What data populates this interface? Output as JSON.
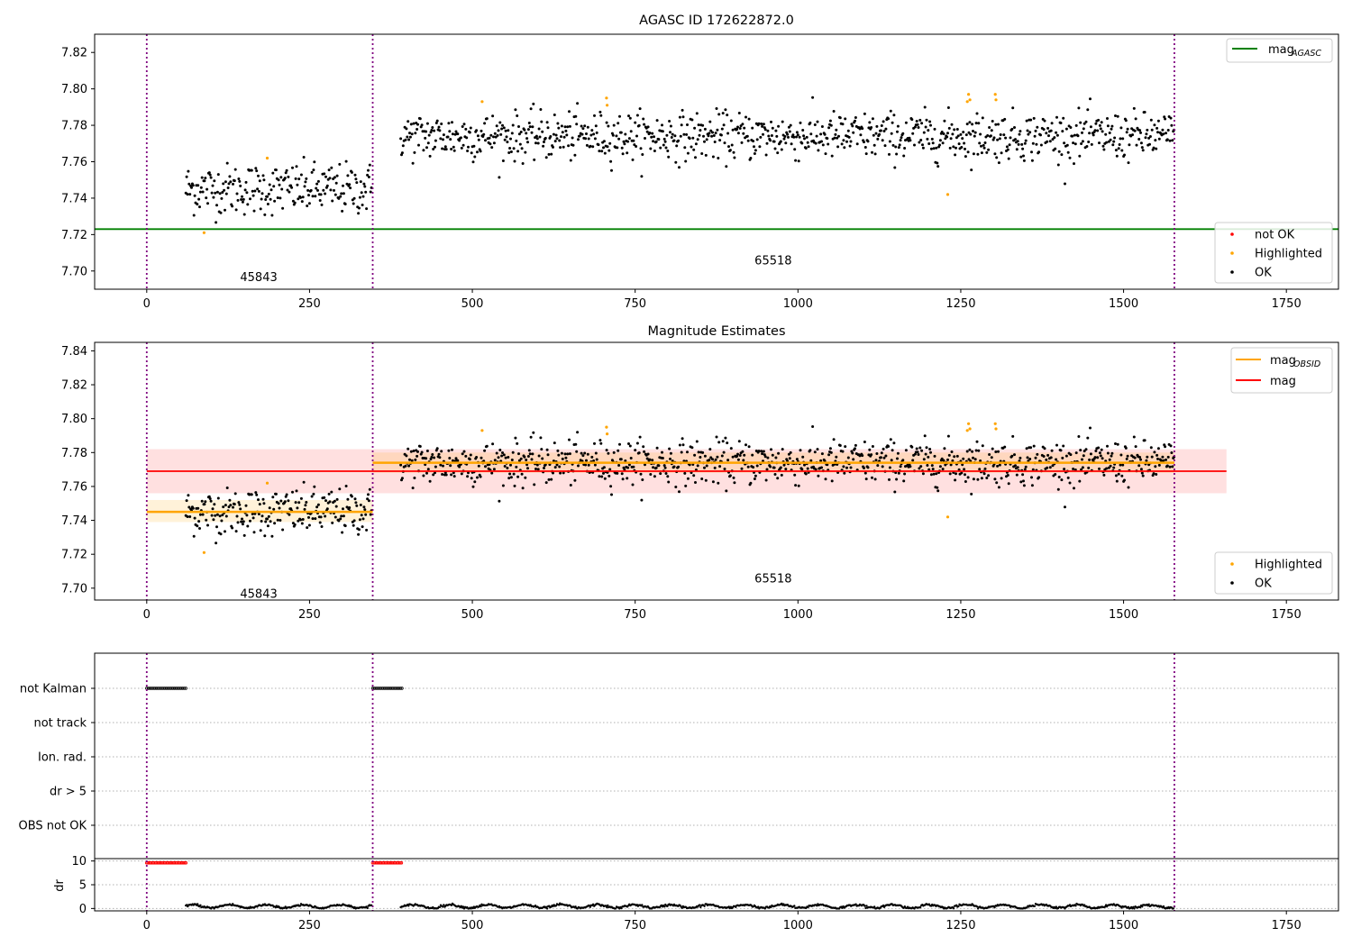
{
  "chart_data": [
    {
      "type": "scatter",
      "title": "AGASC ID 172622872.0",
      "xlim": [
        -80,
        1830
      ],
      "ylim": [
        7.69,
        7.83
      ],
      "xticks": [
        "0",
        "250",
        "500",
        "750",
        "1000",
        "1250",
        "1500",
        "1750"
      ],
      "yticks": [
        "7.70",
        "7.72",
        "7.74",
        "7.76",
        "7.78",
        "7.80",
        "7.82"
      ],
      "obs_boundaries": [
        0,
        347,
        1578
      ],
      "obs_labels": [
        {
          "text": "45843",
          "x": 172,
          "y": 7.697
        },
        {
          "text": "65518",
          "x": 962,
          "y": 7.706
        }
      ],
      "mag_agasc": 7.723,
      "legend_top": {
        "position": "top-right",
        "entries": [
          {
            "label": "mag",
            "sub": "AGASC",
            "color": "#008000"
          }
        ]
      },
      "legend_bottom": {
        "position": "bottom-right",
        "entries": [
          {
            "label": "not OK",
            "color": "#ff0000"
          },
          {
            "label": "Highlighted",
            "color": "#ffa500"
          },
          {
            "label": "OK",
            "color": "#000000"
          }
        ]
      },
      "series": [
        {
          "name": "OK",
          "color": "#000000",
          "segments": [
            {
              "x_start": 60,
              "x_end": 346,
              "mean": 7.745,
              "spread": 0.007
            },
            {
              "x_start": 390,
              "x_end": 1578,
              "mean": 7.774,
              "spread": 0.0065
            }
          ]
        },
        {
          "name": "Highlighted",
          "color": "#ffa500",
          "points": [
            [
              88,
              7.721
            ],
            [
              185,
              7.762
            ],
            [
              515,
              7.793
            ],
            [
              706,
              7.795
            ],
            [
              707,
              7.791
            ],
            [
              1230,
              7.742
            ],
            [
              1260,
              7.793
            ],
            [
              1262,
              7.797
            ],
            [
              1264,
              7.794
            ],
            [
              1303,
              7.797
            ],
            [
              1304,
              7.794
            ]
          ]
        },
        {
          "name": "not OK",
          "color": "#ff0000",
          "points": []
        }
      ]
    },
    {
      "type": "scatter",
      "title": "Magnitude Estimates",
      "xlim": [
        -80,
        1830
      ],
      "ylim": [
        7.693,
        7.845
      ],
      "xticks": [
        "0",
        "250",
        "500",
        "750",
        "1000",
        "1250",
        "1500",
        "1750"
      ],
      "yticks": [
        "7.70",
        "7.72",
        "7.74",
        "7.76",
        "7.78",
        "7.80",
        "7.82",
        "7.84"
      ],
      "obs_boundaries": [
        0,
        347,
        1578
      ],
      "obs_labels": [
        {
          "text": "45843",
          "x": 172,
          "y": 7.697
        },
        {
          "text": "65518",
          "x": 962,
          "y": 7.706
        }
      ],
      "mag": {
        "value": 7.769,
        "band": [
          7.756,
          7.782
        ],
        "x_start": 0,
        "x_end": 1658,
        "color": "#ff0000"
      },
      "mag_obsid": [
        {
          "value": 7.745,
          "band": [
            7.739,
            7.752
          ],
          "x_start": 0,
          "x_end": 347
        },
        {
          "value": 7.774,
          "band": [
            7.768,
            7.78
          ],
          "x_start": 347,
          "x_end": 1578
        }
      ],
      "legend_top": {
        "position": "top-right",
        "entries": [
          {
            "label": "mag",
            "sub": "OBSID",
            "color": "#ffa500"
          },
          {
            "label": "mag",
            "sub": "",
            "color": "#ff0000"
          }
        ]
      },
      "legend_bottom": {
        "position": "bottom-right",
        "entries": [
          {
            "label": "Highlighted",
            "color": "#ffa500"
          },
          {
            "label": "OK",
            "color": "#000000"
          }
        ]
      }
    },
    {
      "type": "scatter",
      "title": "",
      "xlim": [
        -80,
        1830
      ],
      "flag_categories": [
        "not Kalman",
        "not track",
        "Ion. rad.",
        "dr > 5",
        "OBS not OK"
      ],
      "flags": {
        "not Kalman": [
          [
            0,
            60
          ],
          [
            347,
            392
          ]
        ]
      },
      "dr_ylim": [
        -0.5,
        10.5
      ],
      "dr_yticks": [
        "0",
        "5",
        "10"
      ],
      "dr_ylabel": "dr",
      "dr_high_segments": [
        [
          0,
          60
        ],
        [
          347,
          392
        ]
      ],
      "dr_high_value": 9.6,
      "dr_low_segments": [
        [
          60,
          346
        ],
        [
          390,
          1578
        ]
      ],
      "dr_low_mean": 0.45,
      "xticks": [
        "0",
        "250",
        "500",
        "750",
        "1000",
        "1250",
        "1500",
        "1750"
      ]
    }
  ]
}
